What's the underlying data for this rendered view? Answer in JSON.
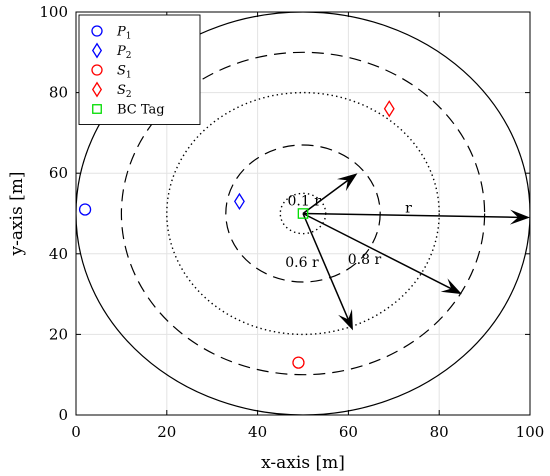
{
  "chart_data": {
    "type": "scatter",
    "title": "",
    "xlabel": "x-axis [m]",
    "ylabel": "y-axis [m]",
    "xlim": [
      0,
      100
    ],
    "ylim": [
      0,
      100
    ],
    "xticks": [
      "0",
      "20",
      "40",
      "60",
      "80",
      "100"
    ],
    "yticks": [
      "0",
      "20",
      "40",
      "60",
      "80",
      "100"
    ],
    "grid": true,
    "legend_position": "top-left",
    "center": [
      50,
      50
    ],
    "radius": 50,
    "circles": [
      {
        "radius": 50,
        "style": "solid"
      },
      {
        "radius": 40,
        "style": "dashed"
      },
      {
        "radius": 30,
        "style": "dotted"
      },
      {
        "radius": 17,
        "style": "dashed"
      },
      {
        "radius": 5,
        "style": "dotted"
      }
    ],
    "arrows": [
      {
        "label": "r",
        "to": [
          100,
          49
        ]
      },
      {
        "label": "0.8 r",
        "to": [
          85,
          30
        ]
      },
      {
        "label": "0.6 r",
        "to": [
          61,
          21
        ]
      },
      {
        "label": "0.1 r",
        "to": [
          62,
          60
        ]
      }
    ],
    "series": [
      {
        "name": "P",
        "sub": "1",
        "marker": "circle",
        "color": "#0000ff",
        "points": [
          [
            2,
            51
          ]
        ]
      },
      {
        "name": "P",
        "sub": "2",
        "marker": "diamond",
        "color": "#0000ff",
        "points": [
          [
            36,
            53
          ]
        ]
      },
      {
        "name": "S",
        "sub": "1",
        "marker": "circle",
        "color": "#ff0000",
        "points": [
          [
            49,
            13
          ]
        ]
      },
      {
        "name": "S",
        "sub": "2",
        "marker": "diamond",
        "color": "#ff0000",
        "points": [
          [
            69,
            76
          ]
        ]
      },
      {
        "name": "BC Tag",
        "sub": "",
        "marker": "square",
        "color": "#00dd00",
        "points": [
          [
            50,
            50
          ]
        ]
      }
    ]
  }
}
